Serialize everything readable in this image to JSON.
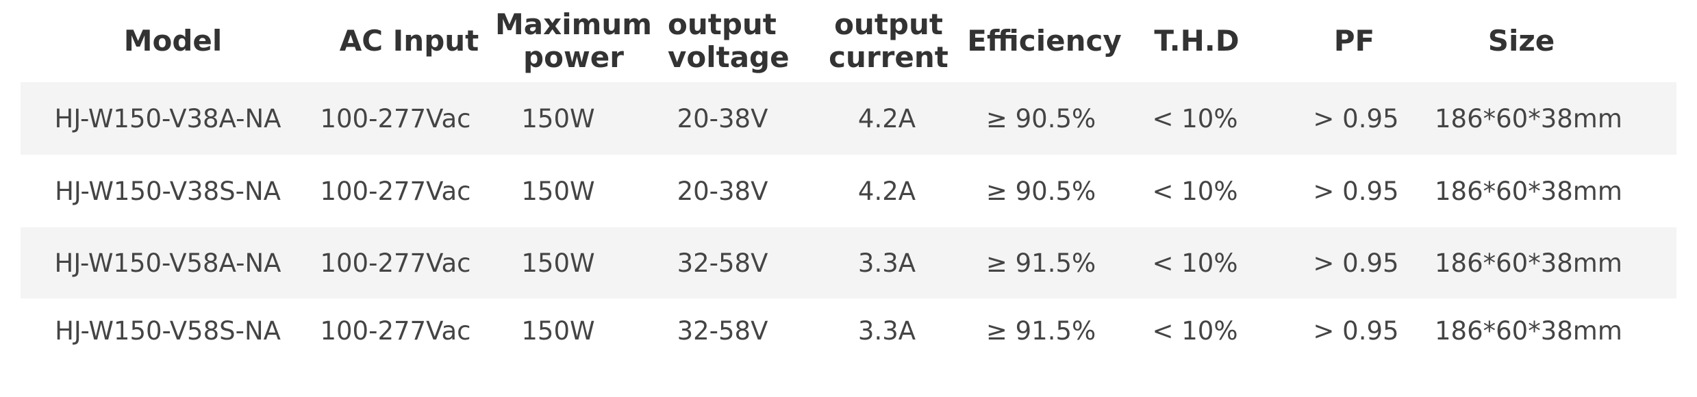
{
  "table": {
    "headers": [
      "Model",
      "AC Input",
      "Maximum\npower",
      "output\nvoltage",
      "output\ncurrent",
      "Efficiency",
      "T.H.D",
      "PF",
      "Size"
    ],
    "rows": [
      [
        "HJ-W150-V38A-NA",
        "100-277Vac",
        "150W",
        "20-38V",
        "4.2A",
        "≥ 90.5%",
        "< 10%",
        "> 0.95",
        "186*60*38mm"
      ],
      [
        "HJ-W150-V38S-NA",
        "100-277Vac",
        "150W",
        "20-38V",
        "4.2A",
        "≥ 90.5%",
        "< 10%",
        "> 0.95",
        "186*60*38mm"
      ],
      [
        "HJ-W150-V58A-NA",
        "100-277Vac",
        "150W",
        "32-58V",
        "3.3A",
        "≥ 91.5%",
        "< 10%",
        "> 0.95",
        "186*60*38mm"
      ],
      [
        "HJ-W150-V58S-NA",
        "100-277Vac",
        "150W",
        "32-58V",
        "3.3A",
        "≥ 91.5%",
        "< 10%",
        "> 0.95",
        "186*60*38mm"
      ]
    ]
  },
  "colors": {
    "shaded_row": "#f4f4f4",
    "header_text": "#333333",
    "body_text": "#444444"
  }
}
